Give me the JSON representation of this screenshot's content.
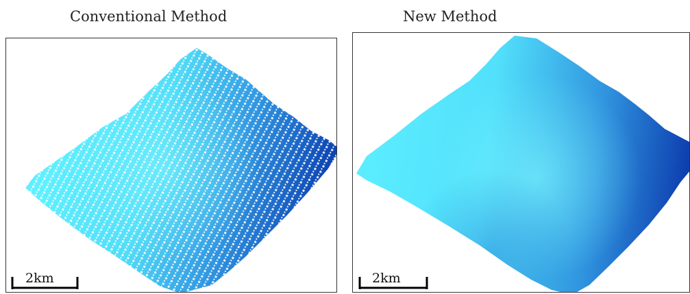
{
  "panels": [
    {
      "title": "Conventional Method",
      "scale_label": "2km"
    },
    {
      "title": "New Method",
      "scale_label": "2km"
    }
  ],
  "colors": {
    "light": "#56ecff",
    "mid": "#38aee8",
    "dark": "#0a3fb4",
    "border": "#333333",
    "scale_bar": "#000000"
  }
}
